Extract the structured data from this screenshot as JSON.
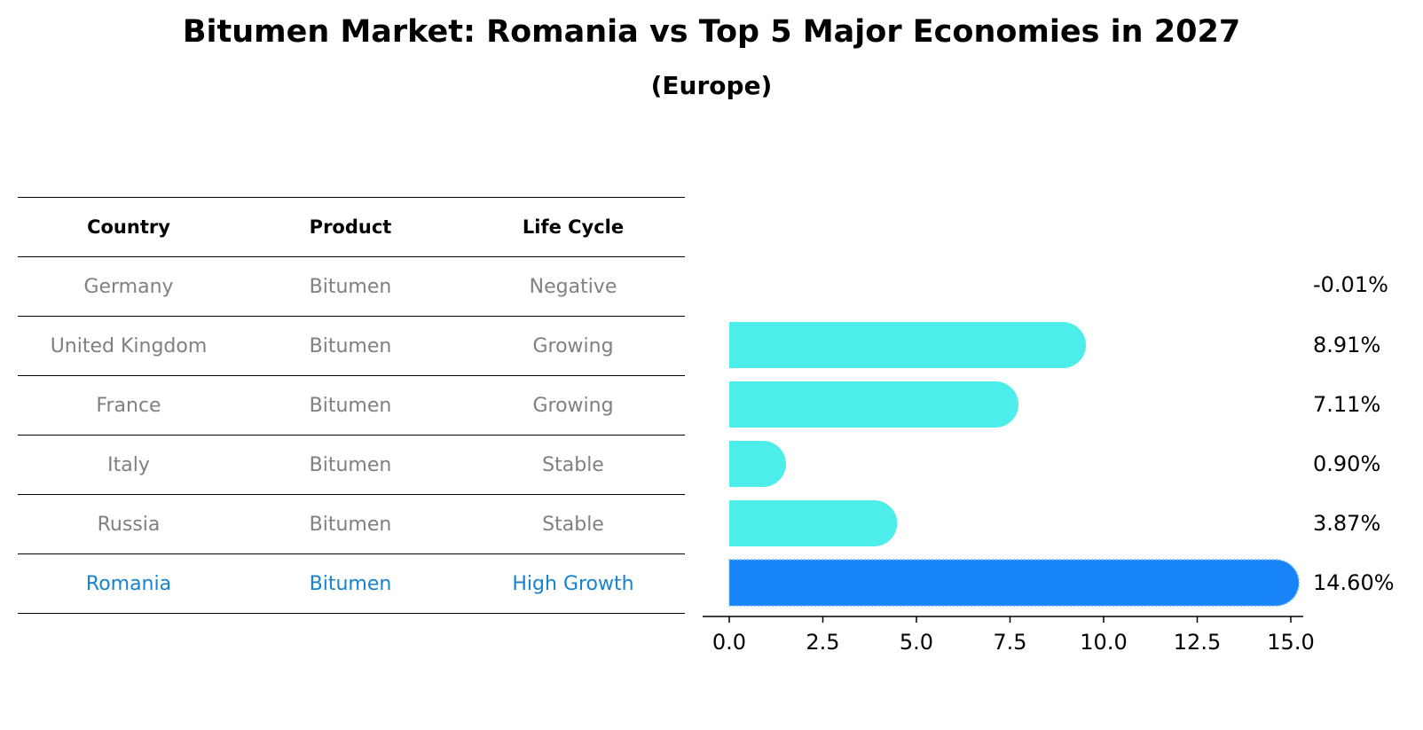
{
  "title": "Bitumen Market: Romania vs Top 5 Major Economies in 2027",
  "subtitle": "(Europe)",
  "table": {
    "headers": [
      "Country",
      "Product",
      "Life Cycle"
    ],
    "rows": [
      [
        "Germany",
        "Bitumen",
        "Negative"
      ],
      [
        "United Kingdom",
        "Bitumen",
        "Growing"
      ],
      [
        "France",
        "Bitumen",
        "Growing"
      ],
      [
        "Italy",
        "Bitumen",
        "Stable"
      ],
      [
        "Russia",
        "Bitumen",
        "Stable"
      ],
      [
        "Romania",
        "Bitumen",
        "High Growth"
      ]
    ],
    "highlight_row": 5,
    "text_color": "#808080",
    "highlight_color": "#1583d0"
  },
  "chart_data": {
    "type": "bar",
    "orientation": "horizontal",
    "categories": [
      "Germany",
      "United Kingdom",
      "France",
      "Italy",
      "Russia",
      "Romania"
    ],
    "values": [
      -0.01,
      8.91,
      7.11,
      0.9,
      3.87,
      14.6
    ],
    "value_labels": [
      "-0.01%",
      "8.91%",
      "7.11%",
      "0.90%",
      "3.87%",
      "14.60%"
    ],
    "xlim": [
      -0.75,
      15.2
    ],
    "xticks": [
      0.0,
      2.5,
      5.0,
      7.5,
      10.0,
      12.5,
      15.0
    ],
    "xtick_labels": [
      "0.0",
      "2.5",
      "5.0",
      "7.5",
      "10.0",
      "12.5",
      "15.0"
    ],
    "bar_color": "#4deeea",
    "highlight_color": "#1785f7",
    "highlight_index": 5,
    "bar_style": "rounded-end"
  }
}
